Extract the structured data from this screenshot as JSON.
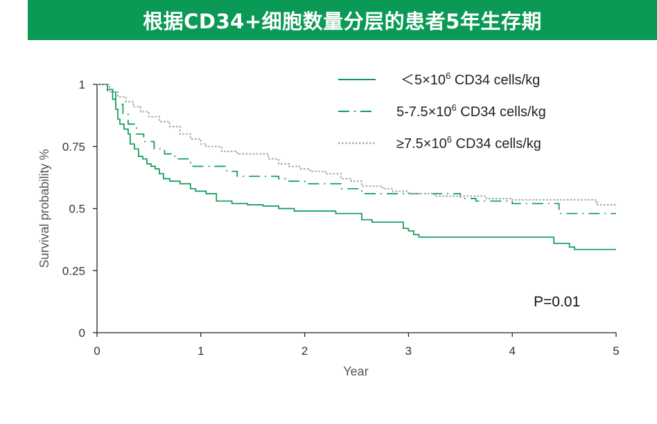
{
  "banner": {
    "title": "根据CD34+细胞数量分层的患者5年生存期",
    "color": "#0a9a55"
  },
  "chart_data": {
    "type": "line",
    "step": true,
    "title": "",
    "xlabel": "Year",
    "ylabel": "Survival probability %",
    "xlim": [
      0,
      5
    ],
    "ylim": [
      0,
      1
    ],
    "xticks": [
      "0",
      "1",
      "2",
      "3",
      "4",
      "5"
    ],
    "yticks": [
      "0",
      "0.25",
      "0.5",
      "0.75",
      "1"
    ],
    "grid": false,
    "legend_position": "top-right",
    "annotation": "P=0.01",
    "series": [
      {
        "name": "＜5×10",
        "name_sup": "6",
        "name_suffix": " CD34 cells/kg",
        "color": "#0a9a55",
        "dash": "solid",
        "x": [
          0,
          0.1,
          0.15,
          0.18,
          0.2,
          0.22,
          0.26,
          0.3,
          0.32,
          0.36,
          0.4,
          0.44,
          0.48,
          0.52,
          0.56,
          0.6,
          0.64,
          0.7,
          0.8,
          0.9,
          0.95,
          1.05,
          1.15,
          1.3,
          1.45,
          1.6,
          1.75,
          1.9,
          2.3,
          2.5,
          2.55,
          2.65,
          2.9,
          2.95,
          3.0,
          3.05,
          3.1,
          3.4,
          4.0,
          4.25,
          4.4,
          4.42,
          4.55,
          4.6,
          5.0
        ],
        "y": [
          1,
          0.98,
          0.94,
          0.9,
          0.86,
          0.84,
          0.82,
          0.8,
          0.76,
          0.74,
          0.71,
          0.7,
          0.68,
          0.67,
          0.66,
          0.64,
          0.62,
          0.61,
          0.6,
          0.58,
          0.57,
          0.56,
          0.53,
          0.52,
          0.515,
          0.51,
          0.5,
          0.49,
          0.48,
          0.48,
          0.455,
          0.445,
          0.445,
          0.42,
          0.41,
          0.395,
          0.385,
          0.385,
          0.385,
          0.385,
          0.36,
          0.36,
          0.345,
          0.335,
          0.335
        ]
      },
      {
        "name": "5-7.5×10",
        "name_sup": "6",
        "name_suffix": " CD34 cells/kg",
        "color": "#0a9a55",
        "dash": "dashdot",
        "x": [
          0,
          0.1,
          0.18,
          0.25,
          0.3,
          0.38,
          0.45,
          0.55,
          0.65,
          0.75,
          0.9,
          1.1,
          1.25,
          1.35,
          1.55,
          1.75,
          1.85,
          2.0,
          2.2,
          2.35,
          2.55,
          2.8,
          3.0,
          3.3,
          3.5,
          3.65,
          3.8,
          4.0,
          4.2,
          4.4,
          4.45,
          5.0
        ],
        "y": [
          1,
          0.97,
          0.92,
          0.88,
          0.84,
          0.8,
          0.77,
          0.74,
          0.72,
          0.7,
          0.67,
          0.67,
          0.65,
          0.63,
          0.63,
          0.62,
          0.61,
          0.6,
          0.6,
          0.58,
          0.56,
          0.56,
          0.56,
          0.56,
          0.54,
          0.53,
          0.53,
          0.52,
          0.52,
          0.52,
          0.48,
          0.48
        ]
      },
      {
        "name": "≥7.5×10",
        "name_sup": "6",
        "name_suffix": " CD34 cells/kg",
        "color": "#aaaaaa",
        "dash": "dotted",
        "x": [
          0,
          0.12,
          0.2,
          0.28,
          0.35,
          0.42,
          0.5,
          0.6,
          0.7,
          0.8,
          0.9,
          1.0,
          1.05,
          1.2,
          1.35,
          1.5,
          1.65,
          1.75,
          1.85,
          1.95,
          2.05,
          2.2,
          2.35,
          2.45,
          2.55,
          2.75,
          2.85,
          3.0,
          3.25,
          3.45,
          3.75,
          4.0,
          4.35,
          4.5,
          4.7,
          4.8,
          4.82,
          5.0
        ],
        "y": [
          1,
          0.97,
          0.95,
          0.93,
          0.91,
          0.89,
          0.87,
          0.85,
          0.83,
          0.8,
          0.78,
          0.76,
          0.75,
          0.73,
          0.72,
          0.72,
          0.7,
          0.68,
          0.67,
          0.66,
          0.65,
          0.64,
          0.62,
          0.61,
          0.59,
          0.58,
          0.57,
          0.56,
          0.55,
          0.55,
          0.54,
          0.535,
          0.535,
          0.535,
          0.535,
          0.525,
          0.515,
          0.515
        ]
      }
    ]
  }
}
